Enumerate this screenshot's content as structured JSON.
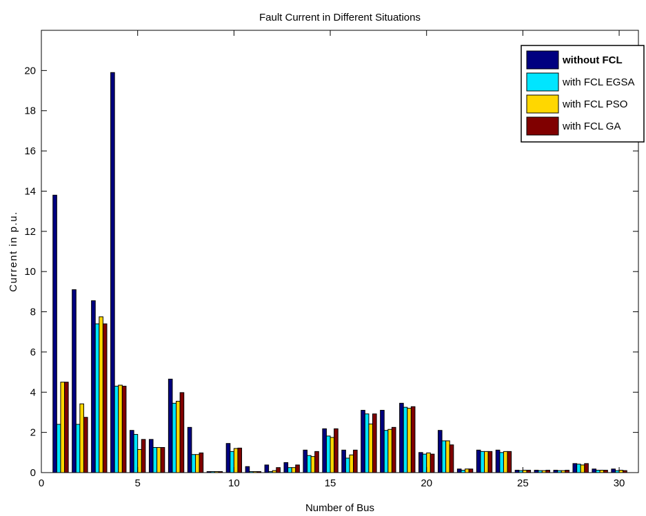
{
  "chart_data": {
    "type": "bar",
    "title": "Fault Current in Different Situations",
    "xlabel": "Number of Bus",
    "ylabel": "Current in p.u.",
    "xlim": [
      0,
      31
    ],
    "ylim": [
      0,
      22
    ],
    "xticks": [
      0,
      5,
      10,
      15,
      20,
      25,
      30
    ],
    "yticks": [
      0,
      2,
      4,
      6,
      8,
      10,
      12,
      14,
      16,
      18,
      20
    ],
    "grid": false,
    "legend_position": "top-right",
    "categories": [
      1,
      2,
      3,
      4,
      5,
      6,
      7,
      8,
      9,
      10,
      11,
      12,
      13,
      14,
      15,
      16,
      17,
      18,
      19,
      20,
      21,
      22,
      23,
      24,
      25,
      26,
      27,
      28,
      29,
      30
    ],
    "series": [
      {
        "name": "without FCL",
        "color": "#000080",
        "legend_bold": true,
        "values": [
          13.8,
          9.1,
          8.55,
          19.9,
          2.1,
          1.65,
          4.65,
          2.25,
          0.05,
          1.45,
          0.3,
          0.38,
          0.5,
          1.12,
          2.18,
          1.12,
          3.1,
          3.1,
          3.45,
          1.0,
          2.1,
          0.18,
          1.12,
          1.12,
          0.12,
          0.12,
          0.12,
          0.45,
          0.18,
          0.18
        ]
      },
      {
        "name": "with FCL EGSA",
        "color": "#00E5FF",
        "legend_bold": false,
        "values": [
          2.4,
          2.4,
          7.4,
          4.3,
          1.9,
          1.25,
          3.45,
          0.9,
          0.05,
          1.05,
          0.05,
          0.05,
          0.25,
          0.85,
          1.82,
          0.72,
          2.92,
          2.1,
          3.25,
          0.92,
          1.58,
          0.12,
          1.05,
          1.0,
          0.1,
          0.1,
          0.1,
          0.42,
          0.12,
          0.1
        ]
      },
      {
        "name": "with FCL PSO",
        "color": "#FFD700",
        "legend_bold": false,
        "values": [
          4.5,
          3.42,
          7.75,
          4.35,
          1.15,
          1.25,
          3.55,
          0.9,
          0.05,
          1.2,
          0.05,
          0.1,
          0.25,
          0.8,
          1.75,
          0.88,
          2.42,
          2.15,
          3.2,
          0.98,
          1.58,
          0.18,
          1.05,
          1.05,
          0.12,
          0.1,
          0.1,
          0.38,
          0.12,
          0.12
        ]
      },
      {
        "name": "with FCL GA",
        "color": "#800000",
        "legend_bold": false,
        "values": [
          4.5,
          2.75,
          7.4,
          4.3,
          1.65,
          1.25,
          3.98,
          0.98,
          0.05,
          1.22,
          0.05,
          0.25,
          0.38,
          1.05,
          2.18,
          1.12,
          2.92,
          2.25,
          3.28,
          0.92,
          1.38,
          0.18,
          1.05,
          1.05,
          0.12,
          0.12,
          0.12,
          0.45,
          0.12,
          0.1
        ]
      }
    ]
  }
}
